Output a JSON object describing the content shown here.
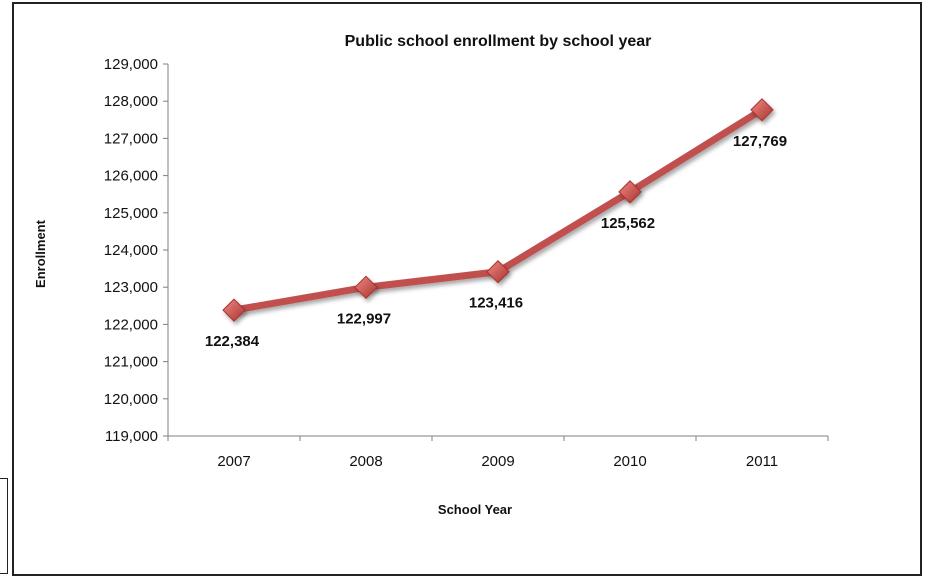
{
  "chart_data": {
    "type": "line",
    "title": "Public school enrollment by school year",
    "xlabel": "School Year",
    "ylabel": "Enrollment",
    "categories": [
      "2007",
      "2008",
      "2009",
      "2010",
      "2011"
    ],
    "series": [
      {
        "values": [
          122384,
          122997,
          123416,
          125562,
          127769
        ]
      }
    ],
    "data_labels": [
      "122,384",
      "122,997",
      "123,416",
      "125,562",
      "127,769"
    ],
    "ylim": [
      119000,
      129000
    ],
    "yticks": [
      119000,
      120000,
      121000,
      122000,
      123000,
      124000,
      125000,
      126000,
      127000,
      128000,
      129000
    ],
    "ytick_labels": [
      "119,000",
      "120,000",
      "121,000",
      "122,000",
      "123,000",
      "124,000",
      "125,000",
      "126,000",
      "127,000",
      "128,000",
      "129,000"
    ],
    "grid": false,
    "legend": "none",
    "colors": {
      "line": "#c0504d",
      "marker": "#d9534f",
      "marker_dark": "#a8322e",
      "axis": "#7f7f7f"
    }
  }
}
